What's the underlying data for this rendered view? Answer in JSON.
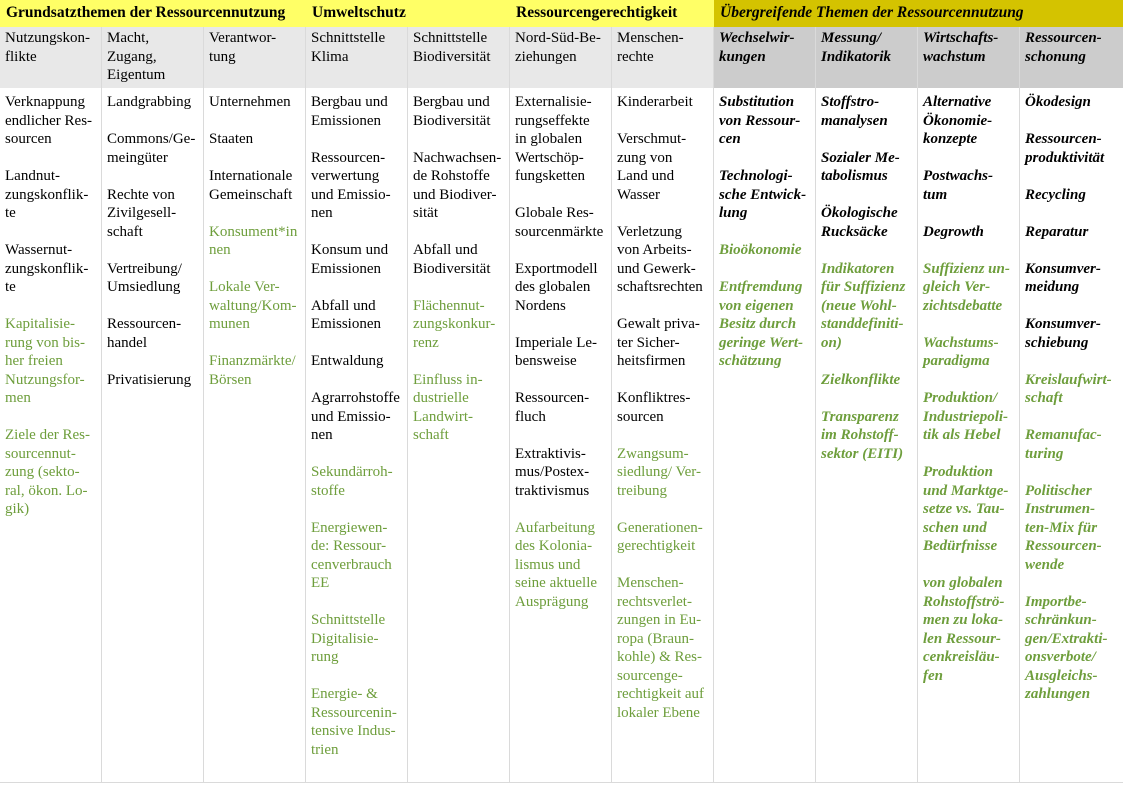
{
  "colors": {
    "group_yellow": "#ffff66",
    "group_dark_yellow": "#d4c300",
    "header_gray": "#e8e8e8",
    "header_dark_gray": "#cccccc",
    "green_text": "#6e9e3c"
  },
  "groups": [
    {
      "label": "Grundsatzthemen der Ressourcennutzung",
      "span": 3,
      "style": "y"
    },
    {
      "label": "Umweltschutz",
      "span": 2,
      "style": "y"
    },
    {
      "label": "Ressourcengerechtigkeit",
      "span": 2,
      "style": "y"
    },
    {
      "label": "Übergreifende Themen der Ressourcennutzung",
      "span": 4,
      "style": "d"
    }
  ],
  "columns": [
    {
      "header": "Nutzungskon-\nflikte",
      "style": "y",
      "items": [
        {
          "text": "Verknappung\nendlicher Res-\nsourcen",
          "green": false
        },
        {
          "text": "Landnut-\nzungskonflik-\nte",
          "green": false
        },
        {
          "text": "Wassernut-\nzungskonflik-\nte",
          "green": false
        },
        {
          "text": "Kapitalisie-\nrung von bis-\nher freien\nNutzungsfor-\nmen",
          "green": true
        },
        {
          "text": "Ziele der Res-\nsourcennut-\nzung (sekto-\nral, ökon. Lo-\ngik)",
          "green": true
        }
      ]
    },
    {
      "header": "Macht,\nZugang,\nEigentum",
      "style": "y",
      "items": [
        {
          "text": "Landgrabbing",
          "green": false
        },
        {
          "text": "Commons/Ge-\nmeingüter",
          "green": false
        },
        {
          "text": "Rechte von\nZivilgesell-\nschaft",
          "green": false
        },
        {
          "text": "Vertreibung/\nUmsiedlung",
          "green": false
        },
        {
          "text": "Ressourcen-\nhandel",
          "green": false
        },
        {
          "text": "Privatisierung",
          "green": false
        }
      ]
    },
    {
      "header": "Verantwor-\ntung",
      "style": "y",
      "items": [
        {
          "text": "Unternehmen",
          "green": false
        },
        {
          "text": "Staaten",
          "green": false
        },
        {
          "text": "Internationale\nGemeinschaft",
          "green": false
        },
        {
          "text": "Konsument*in\nnen",
          "green": true
        },
        {
          "text": "Lokale Ver-\nwaltung/Kom-\nmunen",
          "green": true
        },
        {
          "text": "Finanzmärkte/\nBörsen",
          "green": true
        }
      ]
    },
    {
      "header": "Schnittstelle\nKlima",
      "style": "y",
      "items": [
        {
          "text": "Bergbau und\nEmissionen",
          "green": false
        },
        {
          "text": "Ressourcen-\nverwertung\nund Emissio-\nnen",
          "green": false
        },
        {
          "text": "Konsum und\nEmissionen",
          "green": false
        },
        {
          "text": "Abfall und\nEmissionen",
          "green": false
        },
        {
          "text": "Entwaldung",
          "green": false
        },
        {
          "text": "Agrarrohstoffe\nund Emissio-\nnen",
          "green": false
        },
        {
          "text": "Sekundärroh-\nstoffe",
          "green": true
        },
        {
          "text": "Energiewen-\nde: Ressour-\ncenverbrauch\nEE",
          "green": true
        },
        {
          "text": "Schnittstelle\nDigitalisie-\nrung",
          "green": true
        },
        {
          "text": "Energie- &\nRessourcenin-\ntensive Indus-\ntrien",
          "green": true
        }
      ]
    },
    {
      "header": "Schnittstelle\nBiodiversität",
      "style": "y",
      "items": [
        {
          "text": "Bergbau und\nBiodiversität",
          "green": false
        },
        {
          "text": "Nachwachsen-\nde Rohstoffe\nund Biodiver-\nsität",
          "green": false
        },
        {
          "text": "Abfall und\nBiodiversität",
          "green": false
        },
        {
          "text": "Flächennut-\nzungskonkur-\nrenz",
          "green": true
        },
        {
          "text": "Einfluss in-\ndustrielle\nLandwirt-\nschaft",
          "green": true
        }
      ]
    },
    {
      "header": "Nord-Süd-Be-\nziehungen",
      "style": "y",
      "items": [
        {
          "text": "Externalisie-\nrungseffekte\nin globalen\nWertschöp-\nfungsketten",
          "green": false
        },
        {
          "text": "Globale Res-\nsourcenmärkte",
          "green": false
        },
        {
          "text": "Exportmodell\ndes globalen\nNordens",
          "green": false
        },
        {
          "text": "Imperiale Le-\nbensweise",
          "green": false
        },
        {
          "text": "Ressourcen-\nfluch",
          "green": false
        },
        {
          "text": "Extraktivis-\nmus/Postex-\ntraktivismus",
          "green": false
        },
        {
          "text": "Aufarbeitung\ndes Kolonia-\nlismus und\nseine aktuelle\nAusprägung",
          "green": true
        }
      ]
    },
    {
      "header": "Menschen-\nrechte",
      "style": "y",
      "items": [
        {
          "text": "Kinderarbeit",
          "green": false
        },
        {
          "text": "Verschmut-\nzung von\nLand und\nWasser",
          "green": false
        },
        {
          "text": "Verletzung\nvon Arbeits-\nund Gewerk-\nschaftsrechten",
          "green": false
        },
        {
          "text": "Gewalt priva-\nter Sicher-\nheitsfirmen",
          "green": false
        },
        {
          "text": "Konfliktres-\nsourcen",
          "green": false
        },
        {
          "text": "Zwangsum-\nsiedlung/ Ver-\ntreibung",
          "green": true
        },
        {
          "text": "Generationen-\ngerechtigkeit",
          "green": true
        },
        {
          "text": "Menschen-\nrechtsverlet-\nzungen in Eu-\nropa (Braun-\nkohle) & Res-\nsourcenge-\nrechtigkeit auf\nlokaler Ebene",
          "green": true
        }
      ]
    },
    {
      "header": "Wechselwir-\nkungen",
      "style": "d",
      "items": [
        {
          "text": "Substitution\nvon Ressour-\ncen",
          "green": false
        },
        {
          "text": "Technologi-\nsche Entwick-\nlung",
          "green": false
        },
        {
          "text": "Bioökonomie",
          "green": true
        },
        {
          "text": "Entfremdung\nvon eigenen\nBesitz durch\ngeringe Wert-\nschätzung",
          "green": true
        }
      ]
    },
    {
      "header": "Messung/\nIndikatorik",
      "style": "d",
      "items": [
        {
          "text": "Stoffstro-\nmanalysen",
          "green": false
        },
        {
          "text": "Sozialer Me-\ntabolismus",
          "green": false
        },
        {
          "text": "Ökologische\nRucksäcke",
          "green": false
        },
        {
          "text": "Indikatoren\nfür Suffizienz\n(neue Wohl-\nstanddefiniti-\non)",
          "green": true
        },
        {
          "text": "Zielkonflikte",
          "green": true
        },
        {
          "text": "Transparenz\nim Rohstoff-\nsektor (EITI)",
          "green": true
        }
      ]
    },
    {
      "header": "Wirtschafts-\nwachstum",
      "style": "d",
      "items": [
        {
          "text": "Alternative\nÖkonomie-\nkonzepte",
          "green": false
        },
        {
          "text": "Postwachs-\ntum",
          "green": false
        },
        {
          "text": "Degrowth",
          "green": false
        },
        {
          "text": "Suffizienz un-\ngleich Ver-\nzichtsdebatte",
          "green": true
        },
        {
          "text": "Wachstums-\nparadigma",
          "green": true
        },
        {
          "text": "Produktion/\nIndustriepoli-\ntik als Hebel",
          "green": true
        },
        {
          "text": "Produktion\nund Marktge-\nsetze vs. Tau-\nschen und\nBedürfnisse",
          "green": true
        },
        {
          "text": "von globalen\nRohstoffströ-\nmen zu loka-\nlen Ressour-\ncenkreisläu-\nfen",
          "green": true
        }
      ]
    },
    {
      "header": "Ressourcen-\nschonung",
      "style": "d",
      "items": [
        {
          "text": "Ökodesign",
          "green": false
        },
        {
          "text": "Ressourcen-\nproduktivität",
          "green": false
        },
        {
          "text": "Recycling",
          "green": false
        },
        {
          "text": "Reparatur",
          "green": false
        },
        {
          "text": "Konsumver-\nmeidung",
          "green": false
        },
        {
          "text": "Konsumver-\nschiebung",
          "green": false
        },
        {
          "text": "Kreislaufwirt-\nschaft",
          "green": true
        },
        {
          "text": "Remanufac-\nturing",
          "green": true
        },
        {
          "text": "Politischer\nInstrumen-\nten-Mix für\nRessourcen-\nwende",
          "green": true
        },
        {
          "text": "Importbe-\nschränkun-\ngen/Extrakti-\nonsverbote/\nAusgleichs-\nzahlungen",
          "green": true
        }
      ]
    }
  ]
}
